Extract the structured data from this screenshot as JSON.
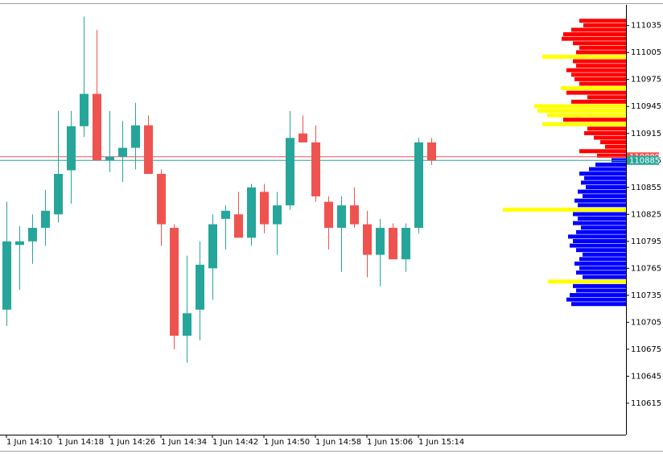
{
  "chart_data": {
    "type": "candlestick",
    "categories": [
      "1 Jun 14:10",
      null,
      null,
      null,
      "1 Jun 14:18",
      null,
      null,
      null,
      "1 Jun 14:26",
      null,
      null,
      null,
      "1 Jun 14:34",
      null,
      null,
      null,
      "1 Jun 14:42",
      null,
      null,
      null,
      "1 Jun 14:50",
      null,
      null,
      null,
      "1 Jun 14:58",
      null,
      null,
      null,
      "1 Jun 15:06",
      null,
      null,
      null,
      "1 Jun 15:14",
      null
    ],
    "open": [
      110719,
      110791,
      110795,
      110810,
      110825,
      110874,
      110923,
      110959,
      110885,
      110889,
      110899,
      110924,
      110870,
      110810,
      110690,
      110719,
      110765,
      110820,
      110825,
      110799,
      110850,
      110814,
      110835,
      110915,
      110905,
      110839,
      110810,
      110835,
      110814,
      110780,
      110810,
      110775,
      110810,
      110905
    ],
    "high": [
      110839,
      110812,
      110825,
      110852,
      110940,
      110940,
      111045,
      111030,
      110940,
      110929,
      110949,
      110935,
      110875,
      110814,
      110779,
      110795,
      110825,
      110835,
      110850,
      110859,
      110859,
      110850,
      110940,
      110935,
      110924,
      110845,
      110845,
      110855,
      110829,
      110820,
      110815,
      110815,
      110910,
      110910
    ],
    "low": [
      110701,
      110741,
      110770,
      110790,
      110816,
      110837,
      110911,
      110885,
      110872,
      110861,
      110875,
      110870,
      110790,
      110675,
      110660,
      110685,
      110730,
      110786,
      110799,
      110790,
      110804,
      110780,
      110830,
      110905,
      110839,
      110786,
      110761,
      110810,
      110755,
      110745,
      110775,
      110761,
      110804,
      110880
    ],
    "close": [
      110795,
      110795,
      110810,
      110829,
      110870,
      110923,
      110959,
      110885,
      110889,
      110899,
      110924,
      110870,
      110814,
      110690,
      110715,
      110769,
      110814,
      110829,
      110799,
      110855,
      110814,
      110835,
      110910,
      110905,
      110845,
      110810,
      110835,
      110814,
      110780,
      110810,
      110775,
      110810,
      110905,
      110885
    ],
    "up_color": "#26a69a",
    "down_color": "#ef5350",
    "ylim": [
      110580,
      111058
    ],
    "yticks": [
      110615,
      110645,
      110675,
      110705,
      110735,
      110765,
      110795,
      110825,
      110855,
      110885,
      110915,
      110945,
      110975,
      111005,
      111035
    ],
    "price_lines": [
      {
        "value": 110889,
        "color": "#ef5350"
      },
      {
        "value": 110885,
        "color": "#26a69a"
      }
    ],
    "profile": {
      "levels": [
        111040,
        111035,
        111030,
        111025,
        111020,
        111015,
        111010,
        111005,
        111000,
        110995,
        110990,
        110985,
        110980,
        110975,
        110970,
        110965,
        110960,
        110955,
        110950,
        110945,
        110940,
        110935,
        110930,
        110925,
        110920,
        110915,
        110910,
        110905,
        110900,
        110895,
        110890,
        110885,
        110880,
        110875,
        110870,
        110865,
        110860,
        110855,
        110850,
        110845,
        110840,
        110835,
        110830,
        110825,
        110820,
        110815,
        110810,
        110805,
        110800,
        110795,
        110790,
        110785,
        110780,
        110775,
        110770,
        110765,
        110760,
        110755,
        110750,
        110745,
        110740,
        110735,
        110730,
        110725
      ],
      "values": [
        58,
        53,
        68,
        78,
        80,
        66,
        58,
        62,
        104,
        66,
        62,
        74,
        68,
        64,
        58,
        81,
        74,
        48,
        68,
        114,
        110,
        98,
        78,
        104,
        48,
        52,
        40,
        32,
        26,
        58,
        36,
        18,
        38,
        46,
        58,
        52,
        56,
        50,
        60,
        54,
        64,
        60,
        153,
        66,
        60,
        66,
        56,
        62,
        72,
        66,
        70,
        62,
        54,
        58,
        64,
        58,
        62,
        54,
        97,
        66,
        62,
        70,
        74,
        68
      ],
      "colors": [
        "#ff0000",
        "#ff0000",
        "#ff0000",
        "#ff0000",
        "#ff0000",
        "#ff0000",
        "#ff0000",
        "#ff0000",
        "#ffff00",
        "#ff0000",
        "#ff0000",
        "#ff0000",
        "#ff0000",
        "#ff0000",
        "#ff0000",
        "#ffff00",
        "#ff0000",
        "#ff0000",
        "#ff0000",
        "#ffff00",
        "#ffff00",
        "#ffff00",
        "#ff0000",
        "#ffff00",
        "#ff0000",
        "#ff0000",
        "#ff0000",
        "#ff0000",
        "#ff0000",
        "#ff0000",
        "#ff0000",
        "#0000ff",
        "#0000ff",
        "#0000ff",
        "#0000ff",
        "#0000ff",
        "#0000ff",
        "#0000ff",
        "#0000ff",
        "#0000ff",
        "#0000ff",
        "#0000ff",
        "#ffff00",
        "#0000ff",
        "#0000ff",
        "#0000ff",
        "#0000ff",
        "#0000ff",
        "#0000ff",
        "#0000ff",
        "#0000ff",
        "#0000ff",
        "#0000ff",
        "#0000ff",
        "#0000ff",
        "#0000ff",
        "#0000ff",
        "#0000ff",
        "#ffff00",
        "#0000ff",
        "#0000ff",
        "#0000ff",
        "#0000ff",
        "#0000ff"
      ]
    }
  }
}
